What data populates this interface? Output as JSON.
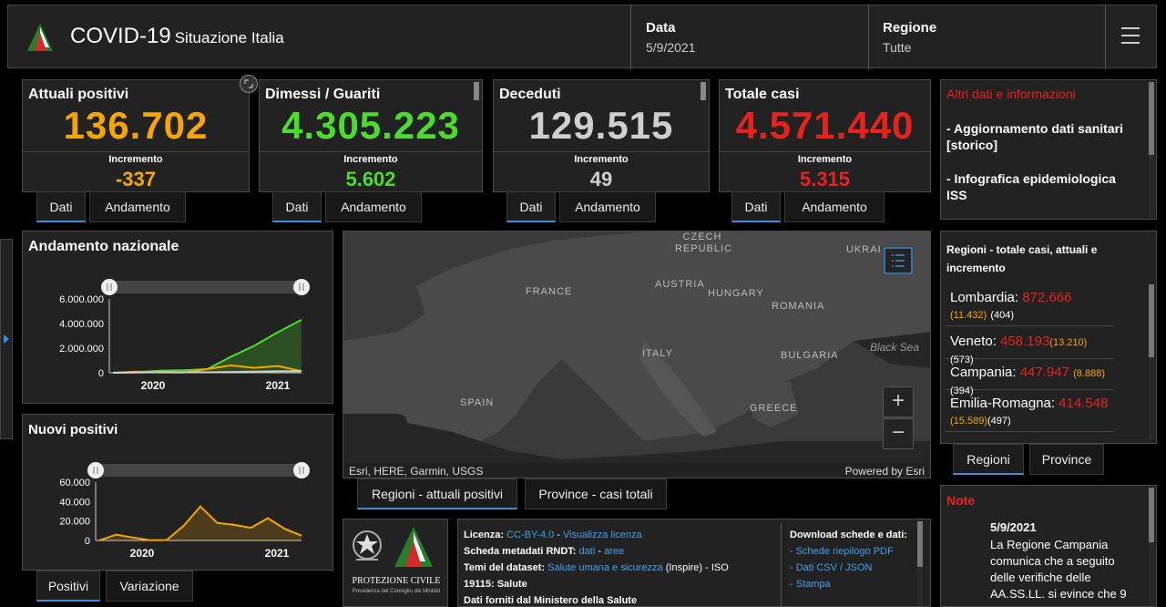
{
  "header": {
    "app_title": "COVID-19",
    "app_subtitle": "Situazione Italia",
    "date_label": "Data",
    "date_value": "5/9/2021",
    "region_label": "Regione",
    "region_value": "Tutte"
  },
  "kpis": [
    {
      "title": "Attuali positivi",
      "value": "136.702",
      "inc_label": "Incremento",
      "inc": "-337",
      "color": "#f5a700"
    },
    {
      "title": "Dimessi / Guariti",
      "value": "4.305.223",
      "inc_label": "Incremento",
      "inc": "5.602",
      "color": "#4cdc2c"
    },
    {
      "title": "Deceduti",
      "value": "129.515",
      "inc_label": "Incremento",
      "inc": "49",
      "color": "#cfcfcf"
    },
    {
      "title": "Totale casi",
      "value": "4.571.440",
      "inc_label": "Incremento",
      "inc": "5.315",
      "color": "#e8231e"
    }
  ],
  "kpi_tabs": {
    "data": "Dati",
    "trend": "Andamento"
  },
  "altri": {
    "title": "Altri dati e informazioni",
    "items": [
      "- Aggiornamento dati sanitari [storico]",
      "- Infografica epidemiologica ISS"
    ]
  },
  "regioni_list": {
    "title": "Regioni - totale casi, attuali e incremento",
    "items": [
      {
        "name": "Lombardia:",
        "total": "872.666",
        "inc": "(11.432)",
        "cur": "(404)"
      },
      {
        "name": "Veneto:",
        "total": "458.193",
        "inc": "(13.210)",
        "cur": "(573)"
      },
      {
        "name": "Campania:",
        "total": "447.947",
        "inc": "(8.888)",
        "cur": "(394)"
      },
      {
        "name": "Emilia-Romagna:",
        "total": "414.548",
        "inc": "(15.589)",
        "cur": "(497)"
      }
    ],
    "tab_regioni": "Regioni",
    "tab_province": "Province"
  },
  "note": {
    "title": "Note",
    "date": "5/9/2021",
    "text": "La Regione Campania comunica che a seguito delle verifiche delle AA.SS.LL. si evince che 9"
  },
  "map": {
    "labels": {
      "czech": "CZECH REPUBLIC",
      "ukraine": "UKRAI",
      "france": "FRANCE",
      "austria": "AUSTRIA",
      "hungary": "HUNGARY",
      "romania": "ROMANIA",
      "italy": "ITALY",
      "bulgaria": "BULGARIA",
      "black_sea": "Black Sea",
      "spain": "SPAIN",
      "greece": "GREECE"
    },
    "attribution": "Esri, HERE, Garmin, USGS",
    "powered": "Powered by Esri",
    "zoom_in": "+",
    "zoom_out": "−",
    "tab_regioni": "Regioni - attuali positivi",
    "tab_province": "Province - casi totali"
  },
  "license": {
    "l1_label": "Licenza:",
    "l1_link1": "CC-BY-4.0",
    "l1_sep": " - ",
    "l1_link2": "Visualizza licenza",
    "l2_label": "Scheda metadati RNDT:",
    "l2_link1": "dati",
    "l2_sep": " - ",
    "l2_link2": "aree",
    "l3_label": "Temi del dataset:",
    "l3_link": "Salute umana e sicurezza",
    "l3_rest": " (Inspire) - ISO",
    "l4": "19115: Salute",
    "l5": "Dati forniti dal Ministero della Salute",
    "download_title": "Download schede e dati:",
    "download_1": "- Schede riepilogo PDF",
    "download_2": "- Dati CSV / JSON",
    "download_3": "- Stampa"
  },
  "logo_text": {
    "pc": "PROTEZIONE CIVILE",
    "pc_sub": "Presidenza del Consiglio dei Ministri"
  },
  "andamento": {
    "title": "Andamento nazionale",
    "tab1": "Positivi",
    "tab2": "Variazione"
  },
  "nuovi": {
    "title": "Nuovi positivi"
  },
  "chart_data": [
    {
      "type": "line",
      "title": "Andamento nazionale",
      "xlabel": "",
      "ylabel": "",
      "x_ticks": [
        "2020",
        "2021"
      ],
      "y_ticks": [
        "6.000.000",
        "4.000.000",
        "2.000.000",
        "0"
      ],
      "ylim": [
        0,
        6000000
      ],
      "x": [
        "2020-02",
        "2020-04",
        "2020-06",
        "2020-08",
        "2020-10",
        "2020-12",
        "2021-02",
        "2021-04",
        "2021-05-09"
      ],
      "series": [
        {
          "color": "#4cdc2c",
          "values": [
            0,
            50000,
            160000,
            200000,
            300000,
            1300000,
            2200000,
            3300000,
            4305223
          ]
        },
        {
          "color": "#f5a700",
          "values": [
            0,
            100000,
            30000,
            15000,
            300000,
            600000,
            400000,
            550000,
            136702
          ]
        },
        {
          "color": "#cfcfcf",
          "values": [
            0,
            20000,
            34000,
            35000,
            40000,
            70000,
            95000,
            115000,
            129515
          ]
        }
      ],
      "grid": false
    },
    {
      "type": "area",
      "title": "Nuovi positivi",
      "xlabel": "",
      "ylabel": "",
      "x_ticks": [
        "2020",
        "2021"
      ],
      "y_ticks": [
        "60.000",
        "40.000",
        "20.000",
        "0"
      ],
      "ylim": [
        0,
        60000
      ],
      "x": [
        "2020-02",
        "2020-03",
        "2020-04",
        "2020-06",
        "2020-08",
        "2020-10",
        "2020-11",
        "2020-12",
        "2021-01",
        "2021-02",
        "2021-03",
        "2021-04",
        "2021-05"
      ],
      "series": [
        {
          "color": "#f5a700",
          "values": [
            0,
            6000,
            3000,
            300,
            500,
            15000,
            35000,
            18000,
            16000,
            13000,
            23000,
            12000,
            5000
          ]
        }
      ],
      "grid": false
    }
  ]
}
